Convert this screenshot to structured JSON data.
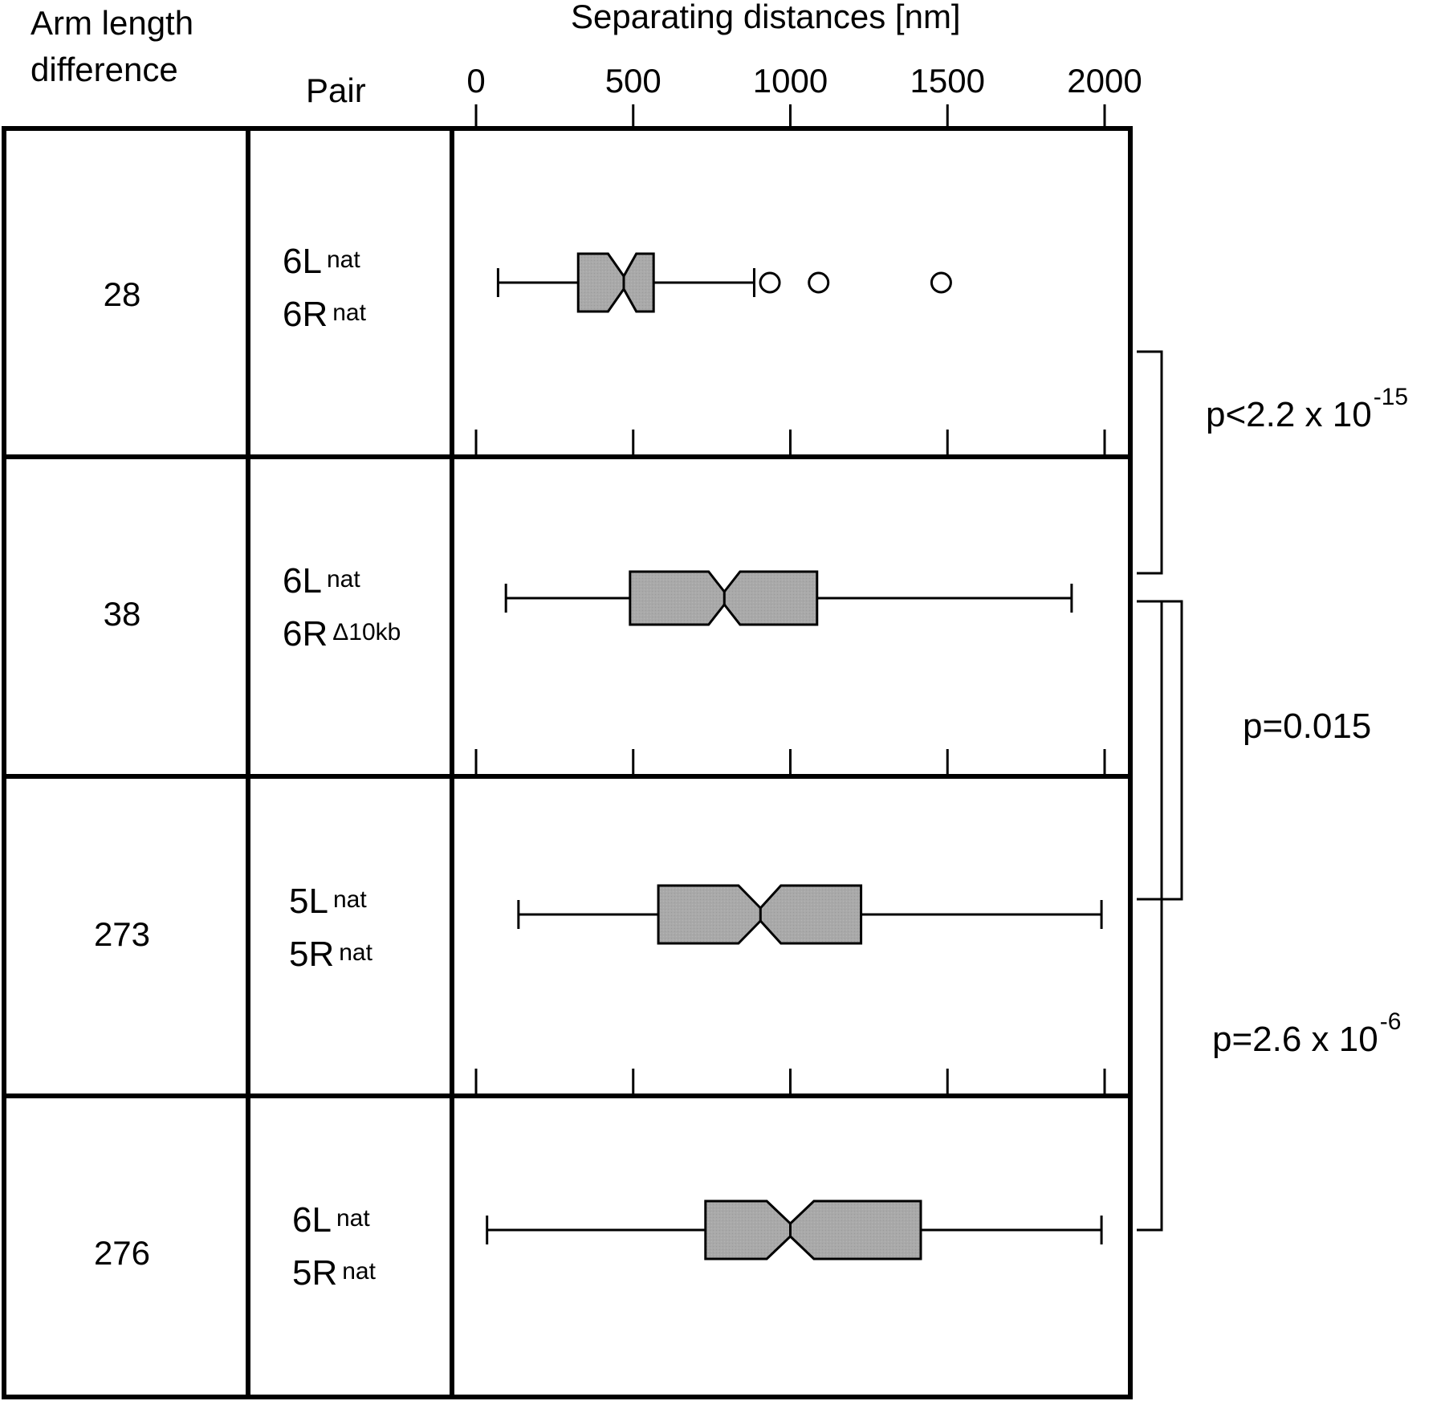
{
  "header": {
    "arm_length_line1": "Arm length",
    "arm_length_line2": "difference",
    "pair": "Pair",
    "xlabel": "Separating distances [nm]"
  },
  "chart_data": {
    "type": "boxplot",
    "orientation": "horizontal",
    "title": "",
    "xlabel": "Separating distances [nm]",
    "xlim": [
      0,
      2000
    ],
    "xticks": [
      0,
      500,
      1000,
      1500,
      2000
    ],
    "xtick_labels": [
      "0",
      "500",
      "1000",
      "1500",
      "2000"
    ],
    "notched": true,
    "box_color": "#a9a9a9",
    "rows": [
      {
        "arm_length_difference": "28",
        "pair_line1": "6L",
        "pair_line1_sup": "nat",
        "pair_line2": "6R",
        "pair_line2_sup": "nat",
        "whisker_low": 70,
        "q1": 325,
        "median": 470,
        "q3": 565,
        "whisker_high": 885,
        "notch_low": 420,
        "notch_high": 510,
        "outliers": [
          935,
          1090,
          1480
        ]
      },
      {
        "arm_length_difference": "38",
        "pair_line1": "6L",
        "pair_line1_sup": "nat",
        "pair_line2": "6R",
        "pair_line2_sup": "Δ10kb",
        "whisker_low": 95,
        "q1": 490,
        "median": 790,
        "q3": 1085,
        "whisker_high": 1895,
        "notch_low": 740,
        "notch_high": 840,
        "outliers": []
      },
      {
        "arm_length_difference": "273",
        "pair_line1": "5L",
        "pair_line1_sup": "nat",
        "pair_line2": "5R",
        "pair_line2_sup": "nat",
        "whisker_low": 135,
        "q1": 580,
        "median": 905,
        "q3": 1225,
        "whisker_high": 1990,
        "notch_low": 835,
        "notch_high": 970,
        "outliers": []
      },
      {
        "arm_length_difference": "276",
        "pair_line1": "6L",
        "pair_line1_sup": "nat",
        "pair_line2": "5R",
        "pair_line2_sup": "nat",
        "whisker_low": 35,
        "q1": 730,
        "median": 1000,
        "q3": 1415,
        "whisker_high": 1990,
        "notch_low": 925,
        "notch_high": 1075,
        "outliers": []
      }
    ],
    "comparisons": [
      {
        "between": [
          "28",
          "38"
        ],
        "label": "p<2.2 x 10",
        "exponent": "-15"
      },
      {
        "between": [
          "38",
          "273"
        ],
        "label": "p=0.015",
        "exponent": ""
      },
      {
        "between": [
          "38",
          "276"
        ],
        "label": "p=2.6 x 10",
        "exponent": "-6"
      }
    ]
  }
}
